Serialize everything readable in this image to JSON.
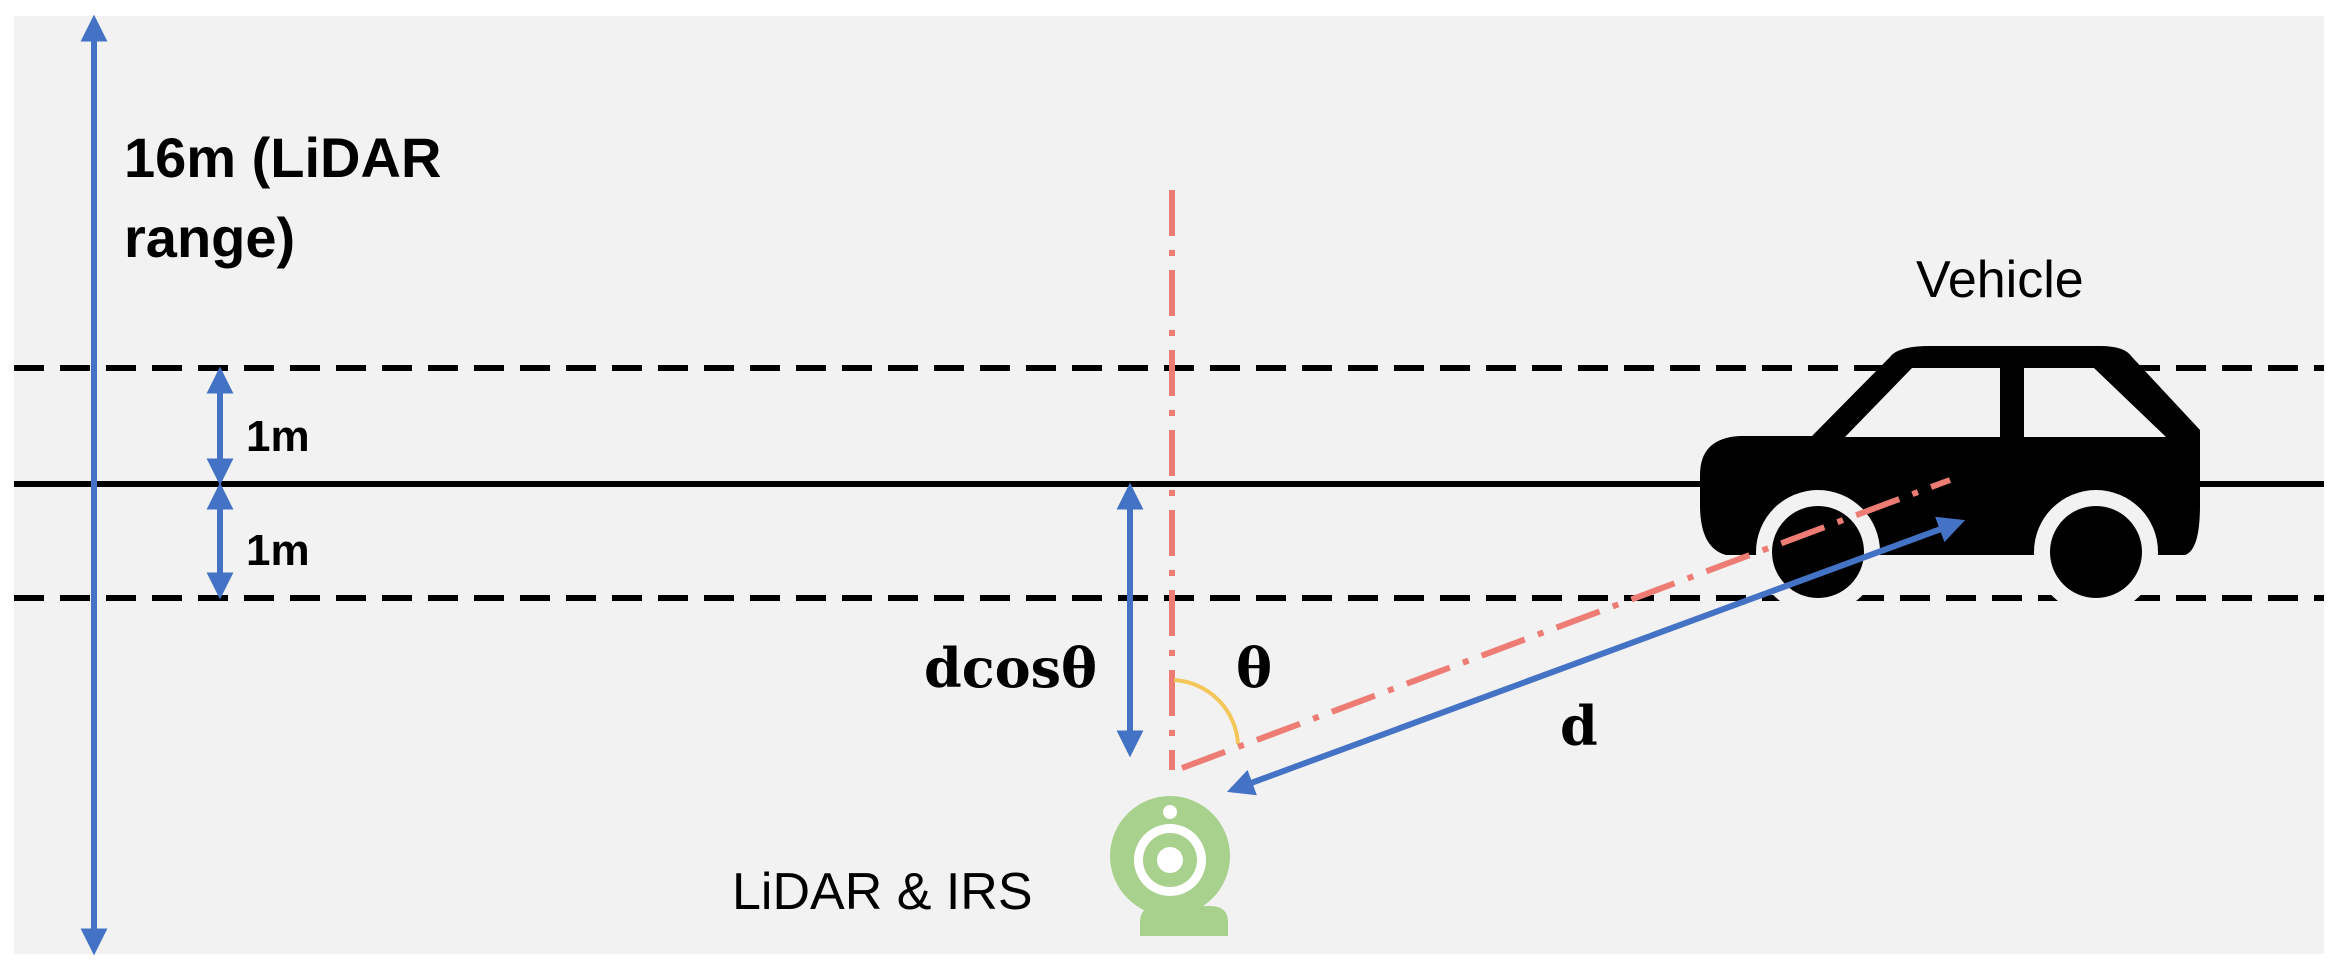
{
  "labels": {
    "lidar_range_line1": "16m (LiDAR",
    "lidar_range_line2": "range)",
    "lane_top": "1m",
    "lane_bottom": "1m",
    "vehicle": "Vehicle",
    "sensor": "LiDAR & IRS",
    "projection": "dcosθ",
    "angle": "θ",
    "distance": "d"
  },
  "colors": {
    "background": "#f2f2f2",
    "arrow": "#4472c4",
    "dash_dot": "#ec7c74",
    "angle_arc": "#f4c75a",
    "sensor": "#a9d18e",
    "road": "#000000"
  },
  "icons": {
    "vehicle": "car-icon",
    "sensor": "camera-sensor-icon"
  }
}
